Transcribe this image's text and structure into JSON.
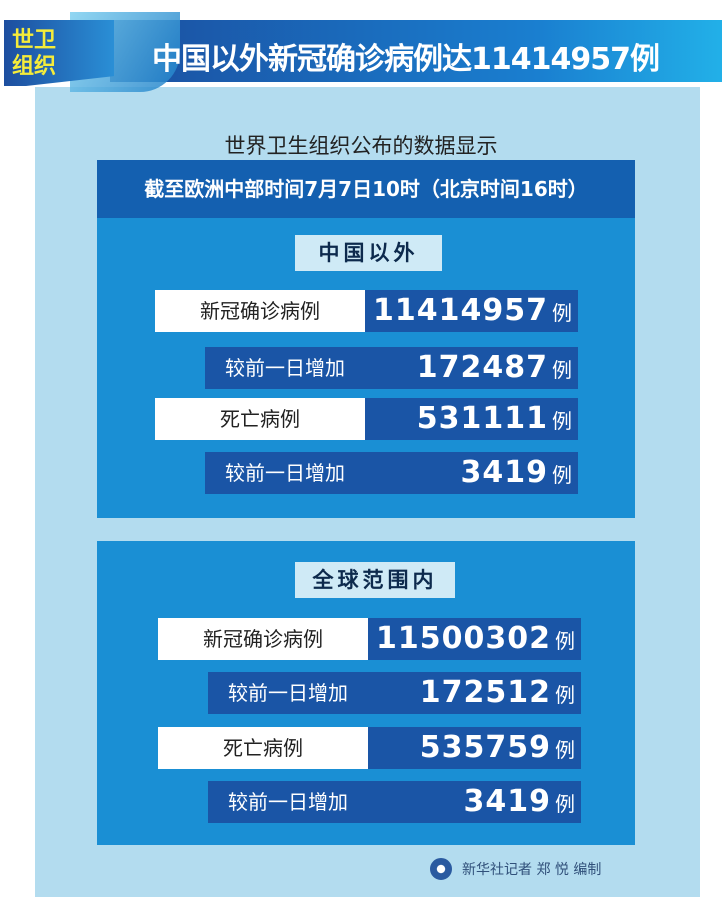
{
  "header": {
    "tag": "世卫组织",
    "title": "中国以外新冠确诊病例达11414957例"
  },
  "subtitle": "世界卫生组织公布的数据显示",
  "date_line": "截至欧洲中部时间7月7日10时（北京时间16时）",
  "sections": [
    {
      "title": "中国以外",
      "rows": [
        {
          "label": "新冠确诊病例",
          "value": "11414957",
          "unit": "例"
        },
        {
          "label": "较前一日增加",
          "value": "172487",
          "unit": "例"
        },
        {
          "label": "死亡病例",
          "value": "531111",
          "unit": "例"
        },
        {
          "label": "较前一日增加",
          "value": "3419",
          "unit": "例"
        }
      ]
    },
    {
      "title": "全球范围内",
      "rows": [
        {
          "label": "新冠确诊病例",
          "value": "11500302",
          "unit": "例"
        },
        {
          "label": "较前一日增加",
          "value": "172512",
          "unit": "例"
        },
        {
          "label": "死亡病例",
          "value": "535759",
          "unit": "例"
        },
        {
          "label": "较前一日增加",
          "value": "3419",
          "unit": "例"
        }
      ]
    }
  ],
  "credit": "新华社记者 郑 悦 编制",
  "colors": {
    "dark_blue": "#1a55a6",
    "mid_blue": "#1a8fd4",
    "panel": "#b3dcef",
    "tag_yellow": "#f5ec3a"
  }
}
